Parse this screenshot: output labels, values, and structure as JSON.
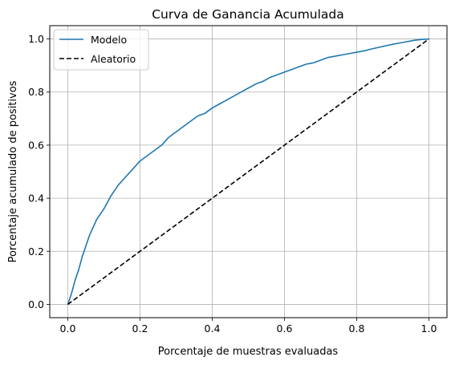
{
  "chart_data": {
    "type": "line",
    "title": "Curva de Ganancia Acumulada",
    "xlabel": "Porcentaje de muestras evaluadas",
    "ylabel": "Porcentaje acumulado de positivos",
    "xlim": [
      -0.05,
      1.05
    ],
    "ylim": [
      -0.05,
      1.05
    ],
    "xticks": [
      0.0,
      0.2,
      0.4,
      0.6,
      0.8,
      1.0
    ],
    "yticks": [
      0.0,
      0.2,
      0.4,
      0.6,
      0.8,
      1.0
    ],
    "xtick_labels": [
      "0.0",
      "0.2",
      "0.4",
      "0.6",
      "0.8",
      "1.0"
    ],
    "ytick_labels": [
      "0.0",
      "0.2",
      "0.4",
      "0.6",
      "0.8",
      "1.0"
    ],
    "grid": true,
    "legend_position": "top-left",
    "series": [
      {
        "name": "Modelo",
        "color": "#1f77b4",
        "style": "solid",
        "x": [
          0.0,
          0.01,
          0.02,
          0.03,
          0.04,
          0.05,
          0.06,
          0.08,
          0.1,
          0.12,
          0.14,
          0.16,
          0.18,
          0.2,
          0.22,
          0.24,
          0.26,
          0.28,
          0.3,
          0.32,
          0.34,
          0.36,
          0.38,
          0.4,
          0.42,
          0.44,
          0.46,
          0.48,
          0.5,
          0.52,
          0.54,
          0.56,
          0.58,
          0.6,
          0.62,
          0.64,
          0.66,
          0.68,
          0.7,
          0.72,
          0.74,
          0.76,
          0.78,
          0.8,
          0.82,
          0.84,
          0.86,
          0.88,
          0.9,
          0.92,
          0.94,
          0.96,
          0.98,
          1.0
        ],
        "y": [
          0.0,
          0.04,
          0.09,
          0.13,
          0.18,
          0.22,
          0.26,
          0.32,
          0.36,
          0.41,
          0.45,
          0.48,
          0.51,
          0.54,
          0.56,
          0.58,
          0.6,
          0.63,
          0.65,
          0.67,
          0.69,
          0.71,
          0.72,
          0.74,
          0.755,
          0.77,
          0.785,
          0.8,
          0.815,
          0.83,
          0.84,
          0.855,
          0.865,
          0.875,
          0.885,
          0.895,
          0.905,
          0.91,
          0.92,
          0.93,
          0.935,
          0.94,
          0.945,
          0.95,
          0.955,
          0.962,
          0.968,
          0.974,
          0.98,
          0.985,
          0.99,
          0.995,
          0.998,
          1.0
        ]
      },
      {
        "name": "Aleatorio",
        "color": "#000000",
        "style": "dashed",
        "x": [
          0.0,
          1.0
        ],
        "y": [
          0.0,
          1.0
        ]
      }
    ]
  }
}
